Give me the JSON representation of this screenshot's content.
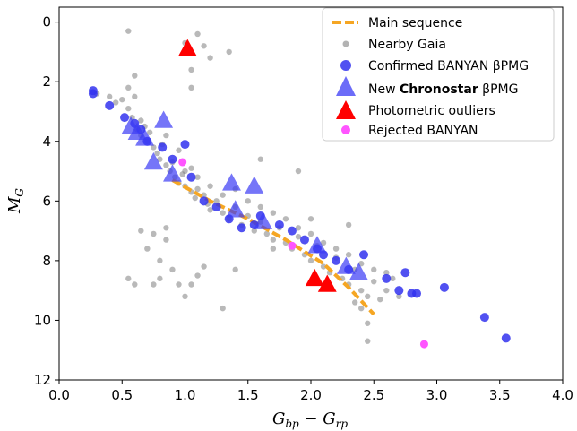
{
  "chart_data": {
    "type": "scatter",
    "xlabel": "G_bp − G_rp",
    "ylabel": "M_G",
    "xlim": [
      0.0,
      4.0
    ],
    "ylim": [
      12,
      -0.5
    ],
    "y_inverted": true,
    "grid": false,
    "legend_position": "top-right",
    "x_ticks": [
      "0.0",
      "0.5",
      "1.0",
      "1.5",
      "2.0",
      "2.5",
      "3.0",
      "3.5",
      "4.0"
    ],
    "x_tick_values": [
      0.0,
      0.5,
      1.0,
      1.5,
      2.0,
      2.5,
      3.0,
      3.5,
      4.0
    ],
    "y_ticks": [
      "0",
      "2",
      "4",
      "6",
      "8",
      "10",
      "12"
    ],
    "y_tick_values": [
      0,
      2,
      4,
      6,
      8,
      10,
      12
    ],
    "legend": [
      {
        "key": "main",
        "label": "Main sequence"
      },
      {
        "key": "gaia",
        "label": "Nearby Gaia"
      },
      {
        "key": "banyan",
        "label": "Confirmed BANYAN βPMG"
      },
      {
        "key": "chronostar",
        "label_prefix": "New ",
        "label_bold": "Chronostar",
        "label_suffix": " βPMG"
      },
      {
        "key": "outliers",
        "label": "Photometric outliers"
      },
      {
        "key": "rejected",
        "label": "Rejected BANYAN"
      }
    ],
    "colors": {
      "main": "#f5a623",
      "gaia": "#808080",
      "banyan": "#3333ee",
      "chronostar": "#3b3bf5",
      "outliers": "#ff0000",
      "rejected": "#ff55ff"
    },
    "main_sequence": [
      [
        0.9,
        5.3
      ],
      [
        1.2,
        6.0
      ],
      [
        1.5,
        6.6
      ],
      [
        1.8,
        7.3
      ],
      [
        2.1,
        8.1
      ],
      [
        2.3,
        8.9
      ],
      [
        2.5,
        9.8
      ]
    ],
    "series": [
      {
        "key": "gaia",
        "points": [
          [
            0.3,
            2.4
          ],
          [
            0.4,
            2.5
          ],
          [
            0.45,
            2.7
          ],
          [
            0.5,
            2.6
          ],
          [
            0.55,
            2.2
          ],
          [
            0.55,
            2.9
          ],
          [
            0.58,
            3.2
          ],
          [
            0.6,
            2.5
          ],
          [
            0.6,
            1.8
          ],
          [
            0.62,
            3.6
          ],
          [
            0.65,
            3.3
          ],
          [
            0.65,
            3.8
          ],
          [
            0.68,
            3.5
          ],
          [
            0.7,
            4.0
          ],
          [
            0.72,
            3.7
          ],
          [
            0.75,
            4.2
          ],
          [
            0.78,
            4.4
          ],
          [
            0.8,
            4.6
          ],
          [
            0.82,
            4.1
          ],
          [
            0.85,
            4.8
          ],
          [
            0.88,
            5.0
          ],
          [
            0.9,
            4.7
          ],
          [
            0.92,
            5.2
          ],
          [
            0.95,
            5.4
          ],
          [
            0.98,
            5.1
          ],
          [
            1.0,
            5.5
          ],
          [
            1.05,
            5.7
          ],
          [
            1.08,
            5.9
          ],
          [
            1.1,
            5.6
          ],
          [
            1.15,
            5.8
          ],
          [
            1.18,
            6.1
          ],
          [
            1.2,
            6.3
          ],
          [
            1.25,
            6.0
          ],
          [
            1.3,
            6.4
          ],
          [
            1.35,
            6.6
          ],
          [
            1.4,
            6.2
          ],
          [
            1.45,
            6.8
          ],
          [
            1.5,
            6.5
          ],
          [
            1.55,
            7.0
          ],
          [
            1.6,
            6.7
          ],
          [
            1.65,
            7.1
          ],
          [
            1.7,
            7.3
          ],
          [
            1.75,
            6.9
          ],
          [
            1.8,
            7.4
          ],
          [
            1.85,
            7.6
          ],
          [
            1.9,
            7.2
          ],
          [
            1.95,
            7.8
          ],
          [
            2.0,
            8.0
          ],
          [
            2.05,
            7.5
          ],
          [
            2.1,
            8.2
          ],
          [
            2.15,
            8.4
          ],
          [
            2.2,
            7.9
          ],
          [
            2.25,
            8.6
          ],
          [
            2.3,
            8.8
          ],
          [
            2.35,
            8.3
          ],
          [
            2.4,
            9.0
          ],
          [
            2.45,
            9.2
          ],
          [
            2.5,
            8.7
          ],
          [
            2.35,
            9.4
          ],
          [
            2.4,
            9.6
          ],
          [
            2.45,
            10.1
          ],
          [
            2.6,
            9.0
          ],
          [
            2.65,
            8.6
          ],
          [
            2.7,
            9.2
          ],
          [
            1.0,
            5.0
          ],
          [
            1.1,
            5.2
          ],
          [
            1.2,
            5.5
          ],
          [
            1.3,
            5.8
          ],
          [
            1.4,
            5.6
          ],
          [
            1.5,
            6.0
          ],
          [
            1.6,
            6.2
          ],
          [
            1.7,
            6.4
          ],
          [
            1.8,
            6.6
          ],
          [
            1.9,
            6.9
          ],
          [
            2.0,
            7.1
          ],
          [
            2.1,
            7.4
          ],
          [
            2.2,
            7.6
          ],
          [
            2.3,
            7.8
          ],
          [
            2.4,
            8.1
          ],
          [
            2.5,
            8.3
          ],
          [
            0.85,
            3.8
          ],
          [
            0.95,
            4.3
          ],
          [
            1.05,
            4.9
          ],
          [
            0.75,
            8.8
          ],
          [
            0.8,
            8.6
          ],
          [
            0.9,
            8.3
          ],
          [
            0.95,
            8.8
          ],
          [
            0.8,
            8.0
          ],
          [
            0.85,
            7.3
          ],
          [
            0.75,
            7.1
          ],
          [
            0.65,
            7.0
          ],
          [
            0.7,
            7.6
          ],
          [
            1.1,
            8.5
          ],
          [
            1.05,
            8.8
          ],
          [
            1.0,
            9.2
          ],
          [
            1.15,
            8.2
          ],
          [
            1.3,
            9.6
          ],
          [
            1.4,
            8.3
          ],
          [
            1.7,
            7.6
          ],
          [
            0.55,
            8.6
          ],
          [
            0.6,
            8.8
          ],
          [
            1.05,
            1.6
          ],
          [
            1.1,
            0.4
          ],
          [
            1.15,
            0.8
          ],
          [
            1.2,
            1.2
          ],
          [
            1.35,
            1.0
          ],
          [
            1.0,
            0.7
          ],
          [
            1.05,
            2.2
          ],
          [
            0.55,
            0.3
          ],
          [
            0.85,
            6.9
          ],
          [
            2.0,
            6.6
          ],
          [
            2.3,
            6.8
          ],
          [
            1.6,
            4.6
          ],
          [
            1.9,
            5.0
          ],
          [
            2.45,
            10.7
          ],
          [
            2.55,
            9.3
          ],
          [
            2.6,
            8.4
          ]
        ]
      },
      {
        "key": "banyan",
        "points": [
          [
            0.27,
            2.3
          ],
          [
            0.27,
            2.4
          ],
          [
            0.4,
            2.8
          ],
          [
            0.52,
            3.2
          ],
          [
            0.6,
            3.4
          ],
          [
            0.65,
            3.6
          ],
          [
            0.7,
            4.0
          ],
          [
            0.82,
            4.2
          ],
          [
            0.9,
            4.6
          ],
          [
            1.0,
            4.1
          ],
          [
            1.05,
            5.2
          ],
          [
            1.15,
            6.0
          ],
          [
            1.25,
            6.2
          ],
          [
            1.35,
            6.6
          ],
          [
            1.45,
            6.9
          ],
          [
            1.55,
            6.8
          ],
          [
            1.75,
            6.8
          ],
          [
            1.85,
            7.0
          ],
          [
            1.95,
            7.3
          ],
          [
            2.05,
            7.6
          ],
          [
            2.1,
            7.8
          ],
          [
            2.2,
            8.0
          ],
          [
            2.3,
            8.3
          ],
          [
            2.42,
            7.8
          ],
          [
            2.6,
            8.6
          ],
          [
            2.7,
            9.0
          ],
          [
            2.75,
            8.4
          ],
          [
            2.8,
            9.1
          ],
          [
            2.84,
            9.1
          ],
          [
            3.06,
            8.9
          ],
          [
            3.38,
            9.9
          ],
          [
            3.55,
            10.6
          ],
          [
            1.6,
            6.5
          ]
        ]
      },
      {
        "key": "chronostar",
        "points": [
          [
            0.57,
            3.5
          ],
          [
            0.62,
            3.7
          ],
          [
            0.68,
            3.9
          ],
          [
            0.75,
            4.7
          ],
          [
            0.83,
            3.3
          ],
          [
            0.9,
            5.1
          ],
          [
            1.37,
            5.4
          ],
          [
            1.4,
            6.3
          ],
          [
            1.55,
            5.5
          ],
          [
            1.62,
            6.7
          ],
          [
            2.05,
            7.5
          ],
          [
            2.28,
            8.2
          ],
          [
            2.38,
            8.4
          ]
        ]
      },
      {
        "key": "outliers",
        "points": [
          [
            1.02,
            0.9
          ],
          [
            2.03,
            8.6
          ],
          [
            2.13,
            8.8
          ]
        ]
      },
      {
        "key": "rejected",
        "points": [
          [
            0.98,
            4.7
          ],
          [
            1.85,
            7.5
          ],
          [
            2.9,
            10.8
          ]
        ]
      }
    ]
  }
}
